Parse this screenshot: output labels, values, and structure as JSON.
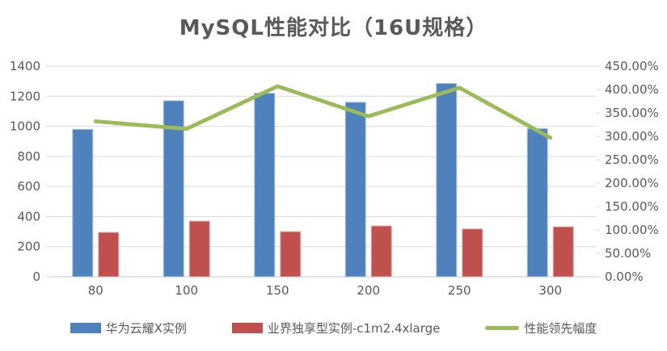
{
  "chart_data": {
    "type": "bar",
    "subtype": "combo-bar-line",
    "title": "MySQL性能对比（16U规格）",
    "categories": [
      "80",
      "100",
      "150",
      "200",
      "250",
      "300"
    ],
    "series": [
      {
        "name": "华为云耀X实例",
        "type": "bar",
        "axis": "left",
        "color": "#4F81BD",
        "border_color": "#A7C1E0",
        "values": [
          980,
          1170,
          1220,
          1160,
          1285,
          985
        ]
      },
      {
        "name": "业界独享型实例-c1m2.4xlarge",
        "type": "bar",
        "axis": "left",
        "color": "#C0504D",
        "border_color": "#DFACAB",
        "values": [
          295,
          370,
          300,
          338,
          318,
          332
        ]
      },
      {
        "name": "性能领先幅度",
        "type": "line",
        "axis": "right",
        "unit": "percent",
        "color": "#9BBB59",
        "values": [
          332,
          316,
          407,
          343,
          404,
          297
        ]
      }
    ],
    "left_axis": {
      "min": 0,
      "max": 1400,
      "step": 200,
      "ticks": [
        "0",
        "200",
        "400",
        "600",
        "800",
        "1000",
        "1200",
        "1400"
      ]
    },
    "right_axis": {
      "min": 0,
      "max": 450,
      "step": 50,
      "ticks": [
        "0.00%",
        "50.00%",
        "100.00%",
        "150.00%",
        "200.00%",
        "250.00%",
        "300.00%",
        "350.00%",
        "400.00%",
        "450.00%"
      ]
    },
    "grid": true,
    "legend_position": "bottom",
    "colors": {
      "text": "#595959",
      "grid": "#D9D9D9",
      "axis_line": "#C6C6C6",
      "background": "#FFFFFF"
    }
  }
}
